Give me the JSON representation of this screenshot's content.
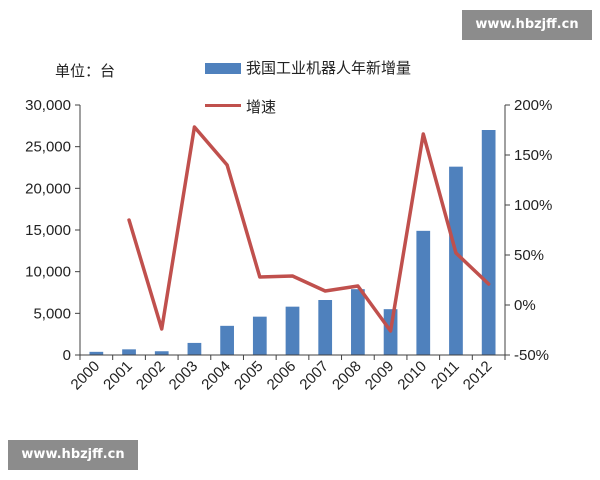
{
  "watermark": {
    "text": "www.hbzjff.cn"
  },
  "unit_label": "单位：台",
  "chart_data": {
    "type": "bar",
    "categories": [
      "2000",
      "2001",
      "2002",
      "2003",
      "2004",
      "2005",
      "2006",
      "2007",
      "2008",
      "2009",
      "2010",
      "2011",
      "2012"
    ],
    "series": [
      {
        "name": "我国工业机器人年新增量",
        "type": "bar",
        "axis": "left",
        "values": [
          380,
          680,
          450,
          1450,
          3500,
          4600,
          5800,
          6600,
          7900,
          5500,
          14900,
          22600,
          27000
        ],
        "color": "#4f81bd"
      },
      {
        "name": "增速",
        "type": "line",
        "axis": "right",
        "values": [
          null,
          85,
          -24,
          178,
          140,
          28,
          29,
          14,
          19,
          -26,
          171,
          52,
          21
        ],
        "color": "#c0504d"
      }
    ],
    "y_left": {
      "ylim": [
        0,
        30000
      ],
      "ticks": [
        "0",
        "5,000",
        "10,000",
        "15,000",
        "20,000",
        "25,000",
        "30,000"
      ],
      "tick_values": [
        0,
        5000,
        10000,
        15000,
        20000,
        25000,
        30000
      ]
    },
    "y_right": {
      "ylim": [
        -50,
        200
      ],
      "ticks": [
        "-50%",
        "0%",
        "50%",
        "100%",
        "150%",
        "200%"
      ],
      "tick_values": [
        -50,
        0,
        50,
        100,
        150,
        200
      ]
    },
    "grid": false,
    "legend_position": "top"
  }
}
